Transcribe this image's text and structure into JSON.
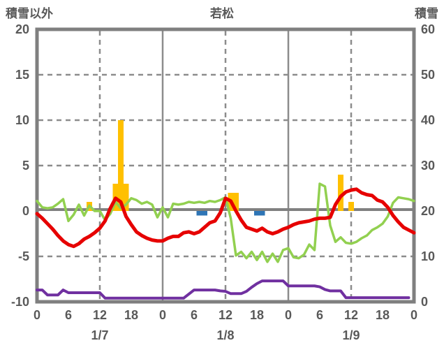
{
  "header": {
    "left_axis_title": "積雪以外",
    "chart_title": "若松",
    "right_axis_title": "積雪"
  },
  "colors": {
    "red_line": "#e60000",
    "green_line": "#92d050",
    "purple_line": "#7030a0",
    "orange_bars": "#ffc000",
    "blue_bars": "#2e75b6",
    "frame": "#7f7f7f",
    "grid": "#8c8c8c",
    "zero_line": "#808080",
    "text": "#595959",
    "background": "#ffffff"
  },
  "chart_data": {
    "type": "line",
    "title": "若松",
    "left_axis": {
      "title": "積雪以外",
      "ticks": [
        20,
        15,
        10,
        5,
        0,
        -5,
        -10
      ],
      "range": [
        -10,
        20
      ]
    },
    "right_axis": {
      "title": "積雪",
      "ticks": [
        60,
        50,
        40,
        30,
        20,
        10,
        0
      ],
      "range": [
        0,
        60
      ]
    },
    "x_axis": {
      "range_hours": [
        0,
        72
      ],
      "hour_tick_positions": [
        0,
        6,
        12,
        18,
        24,
        30,
        36,
        42,
        48,
        54,
        60,
        66,
        72
      ],
      "hour_tick_labels": [
        "0",
        "6",
        "12",
        "18",
        "0",
        "6",
        "12",
        "18",
        "0",
        "6",
        "12",
        "18",
        "0"
      ],
      "date_labels": [
        {
          "label": "1/7",
          "hour": 12
        },
        {
          "label": "1/8",
          "hour": 36
        },
        {
          "label": "1/9",
          "hour": 60
        }
      ]
    },
    "grid": {
      "horizontal_dashed_at_values": [
        15,
        10,
        5,
        -5
      ],
      "vertical_solid_at_hours": [
        24,
        48
      ],
      "vertical_dashed_at_hours": [
        12,
        36,
        60
      ],
      "zero_line_value": 0
    },
    "series": [
      {
        "id": "green-line",
        "axis": "left",
        "color": "#92d050",
        "width": 3.5,
        "values": [
          1.1,
          0.4,
          0.3,
          0.4,
          0.8,
          1.3,
          -1.1,
          -0.4,
          0.7,
          -0.5,
          0.6,
          0.0,
          0.0,
          -1.0,
          -0.3,
          1.0,
          0.3,
          0.7,
          1.4,
          1.2,
          0.8,
          1.0,
          0.7,
          -0.7,
          0.4,
          -0.7,
          0.8,
          0.7,
          0.8,
          1.0,
          0.9,
          1.0,
          0.9,
          1.1,
          1.0,
          1.2,
          1.5,
          -0.8,
          -4.9,
          -4.5,
          -5.2,
          -4.5,
          -5.4,
          -4.5,
          -5.6,
          -4.7,
          -5.6,
          -4.3,
          -4.1,
          -5.1,
          -5.2,
          -4.8,
          -3.7,
          -4.3,
          3.0,
          2.7,
          -1.6,
          -3.4,
          -2.9,
          -3.5,
          -3.6,
          -3.4,
          -3.0,
          -2.7,
          -2.1,
          -1.8,
          -1.4,
          -0.6,
          0.9,
          1.5,
          1.4,
          1.3,
          1.1
        ]
      },
      {
        "id": "purple-line",
        "axis": "right",
        "color": "#7030a0",
        "width": 4,
        "values": [
          2.6,
          2.6,
          1.5,
          1.5,
          1.5,
          2.6,
          2.0,
          2.0,
          2.0,
          2.0,
          2.0,
          2.0,
          2.0,
          0.8,
          0.8,
          0.8,
          0.8,
          0.8,
          0.8,
          0.8,
          0.8,
          0.8,
          0.8,
          0.8,
          0.8,
          0.8,
          0.8,
          0.8,
          0.8,
          1.7,
          2.6,
          2.6,
          2.6,
          2.6,
          2.6,
          2.4,
          2.3,
          1.8,
          1.8,
          1.8,
          2.3,
          3.2,
          4.0,
          4.6,
          4.6,
          4.6,
          4.6,
          4.6,
          3.5,
          3.5,
          3.5,
          3.5,
          3.5,
          3.5,
          3.3,
          2.7,
          2.4,
          2.4,
          2.4,
          0.9,
          0.9,
          0.9,
          0.9,
          0.9,
          0.9,
          0.9,
          0.9,
          0.9,
          0.9,
          0.9,
          0.9,
          0.9,
          null
        ]
      },
      {
        "id": "red-line",
        "axis": "left",
        "color": "#e60000",
        "width": 5,
        "values": [
          -0.3,
          -0.8,
          -1.4,
          -2.0,
          -2.7,
          -3.3,
          -3.7,
          -3.9,
          -3.6,
          -3.1,
          -2.8,
          -2.4,
          -1.9,
          -1.1,
          0.3,
          1.4,
          1.0,
          -0.6,
          -1.5,
          -2.3,
          -2.7,
          -3.0,
          -3.2,
          -3.3,
          -3.3,
          -3.0,
          -2.8,
          -2.8,
          -2.4,
          -2.3,
          -2.5,
          -2.3,
          -1.8,
          -1.3,
          -1.1,
          -0.2,
          1.4,
          1.1,
          0.0,
          -1.0,
          -1.8,
          -2.0,
          -2.2,
          -1.9,
          -2.3,
          -2.5,
          -2.3,
          -2.0,
          -1.8,
          -1.5,
          -1.3,
          -1.2,
          -1.1,
          -0.9,
          -0.8,
          -0.8,
          -0.7,
          0.7,
          1.6,
          2.1,
          2.3,
          2.4,
          2.0,
          1.8,
          1.7,
          1.2,
          1.0,
          0.4,
          -0.5,
          -1.2,
          -1.8,
          -2.1,
          -2.4
        ]
      }
    ],
    "bars": [
      {
        "id": "orange-bars",
        "axis": "left",
        "color": "#ffc000",
        "points": [
          {
            "hour": 10,
            "value": 1
          },
          {
            "hour": 15,
            "value": 3
          },
          {
            "hour": 16,
            "value": 10
          },
          {
            "hour": 17,
            "value": 3
          },
          {
            "hour": 37,
            "value": 2
          },
          {
            "hour": 38,
            "value": 2
          },
          {
            "hour": 58,
            "value": 4
          },
          {
            "hour": 60,
            "value": 1
          }
        ]
      },
      {
        "id": "blue-bars",
        "axis": "left",
        "color": "#2e75b6",
        "points": [
          {
            "hour": 31,
            "value": -0.5
          },
          {
            "hour": 32,
            "value": -0.5
          },
          {
            "hour": 42,
            "value": -0.5
          },
          {
            "hour": 43,
            "value": -0.5
          }
        ]
      }
    ]
  }
}
